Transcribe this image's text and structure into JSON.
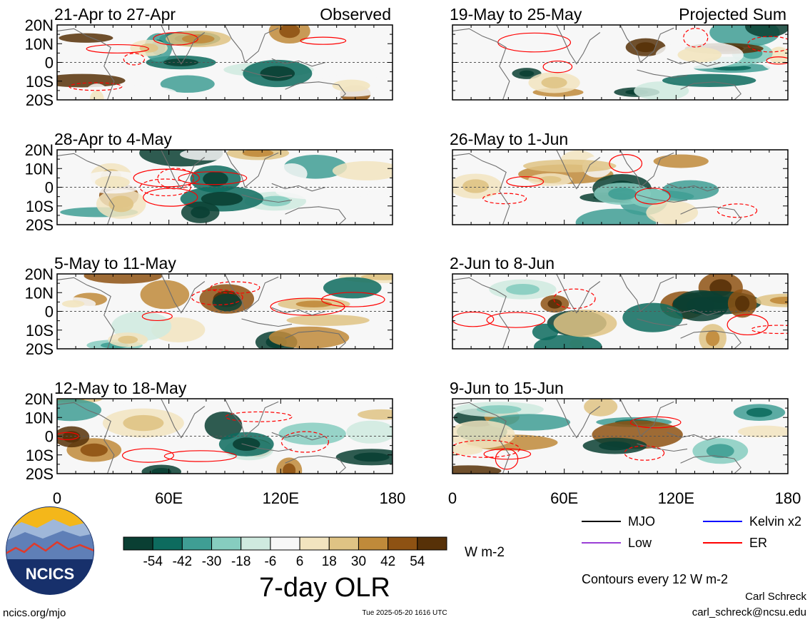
{
  "panels": [
    {
      "col": 0,
      "row": 0,
      "title": "21-Apr to 27-Apr",
      "label": "Observed"
    },
    {
      "col": 0,
      "row": 1,
      "title": "28-Apr to 4-May",
      "label": ""
    },
    {
      "col": 0,
      "row": 2,
      "title": "5-May to 11-May",
      "label": ""
    },
    {
      "col": 0,
      "row": 3,
      "title": "12-May to 18-May",
      "label": ""
    },
    {
      "col": 1,
      "row": 0,
      "title": "19-May to 25-May",
      "label": "Projected Sum"
    },
    {
      "col": 1,
      "row": 1,
      "title": "26-May to 1-Jun",
      "label": ""
    },
    {
      "col": 1,
      "row": 2,
      "title": "2-Jun to 8-Jun",
      "label": ""
    },
    {
      "col": 1,
      "row": 3,
      "title": "9-Jun to 15-Jun",
      "label": ""
    }
  ],
  "lat_labels": [
    "20N",
    "10N",
    "0",
    "10S",
    "20S"
  ],
  "lon_labels": [
    "0",
    "60E",
    "120E",
    "180"
  ],
  "colorbar": {
    "colors": [
      "#0a3f33",
      "#0d6b5e",
      "#3f9e94",
      "#86cdbf",
      "#cfeadf",
      "#f7f7f7",
      "#f2e4bf",
      "#dfc384",
      "#c08a3a",
      "#8e5213",
      "#573108"
    ],
    "labels": [
      "-54",
      "-42",
      "-30",
      "-18",
      "-6",
      "6",
      "18",
      "30",
      "42",
      "54"
    ],
    "units": "W m-2",
    "title": "7-day OLR"
  },
  "legend": {
    "items": [
      {
        "label": "MJO",
        "color": "#000000"
      },
      {
        "label": "Kelvin x2",
        "color": "#0000ff"
      },
      {
        "label": "Low",
        "color": "#9a3fd6"
      },
      {
        "label": "ER",
        "color": "#ff0000"
      }
    ],
    "note": "Contours every 12 W m-2"
  },
  "logo": {
    "text": "NCICS"
  },
  "footer": {
    "left": "ncics.org/mjo",
    "center": "Tue 2025-05-20 1616 UTC",
    "author": "Carl Schreck",
    "email": "carl_schreck@ncsu.edu"
  }
}
